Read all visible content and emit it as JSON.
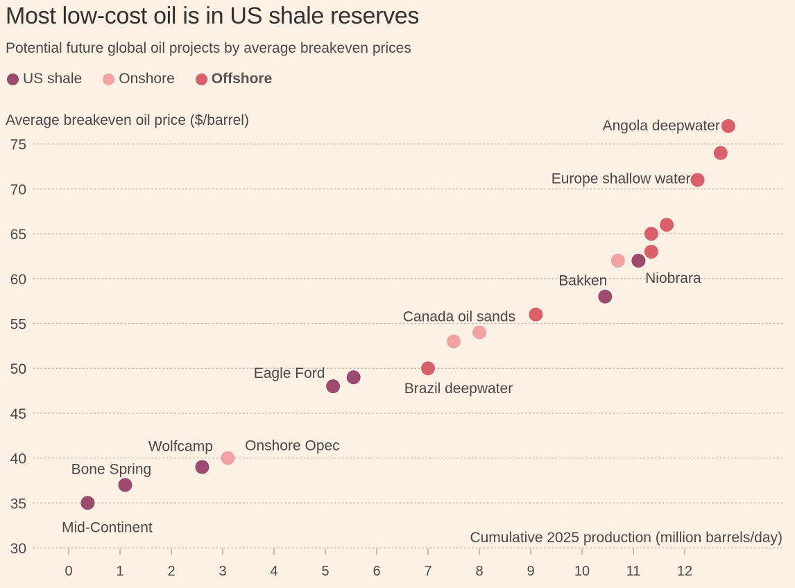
{
  "title": "Most low-cost oil is in US shale reserves",
  "subtitle": "Potential future global oil projects by average breakeven prices",
  "legend": [
    {
      "label": "US shale",
      "color": "#9c4a6e"
    },
    {
      "label": "Onshore",
      "color": "#f2a2a3"
    },
    {
      "label": "Offshore",
      "color": "#d9606a"
    }
  ],
  "chart_data": {
    "type": "scatter",
    "title": "Most low-cost oil is in US shale reserves",
    "subtitle": "Potential future global oil projects by average breakeven prices",
    "ylabel": "Average breakeven oil price ($/barrel)",
    "xlabel": "Cumulative 2025 production (million barrels/day)",
    "xlim": [
      -0.4,
      13.6
    ],
    "ylim": [
      30,
      78
    ],
    "xticks": [
      0,
      1,
      2,
      3,
      4,
      5,
      6,
      7,
      8,
      9,
      10,
      11,
      12
    ],
    "yticks": [
      30,
      35,
      40,
      45,
      50,
      55,
      60,
      65,
      70,
      75
    ],
    "grid": "horizontal dotted",
    "colors": {
      "US shale": "#9c4a6e",
      "Onshore": "#f2a2a3",
      "Offshore": "#d9606a"
    },
    "points": [
      {
        "x": 0.37,
        "y": 35,
        "category": "US shale",
        "label": "Mid-Continent"
      },
      {
        "x": 1.1,
        "y": 37,
        "category": "US shale",
        "label": "Bone Spring"
      },
      {
        "x": 2.6,
        "y": 39,
        "category": "US shale",
        "label": "Wolfcamp"
      },
      {
        "x": 3.1,
        "y": 40,
        "category": "Onshore",
        "label": "Onshore Opec"
      },
      {
        "x": 5.15,
        "y": 48,
        "category": "US shale",
        "label": "Eagle Ford"
      },
      {
        "x": 5.55,
        "y": 49,
        "category": "US shale",
        "label": ""
      },
      {
        "x": 7.0,
        "y": 50,
        "category": "Offshore",
        "label": "Brazil deepwater"
      },
      {
        "x": 7.5,
        "y": 53,
        "category": "Onshore",
        "label": ""
      },
      {
        "x": 8.0,
        "y": 54,
        "category": "Onshore",
        "label": "Canada oil sands"
      },
      {
        "x": 9.1,
        "y": 56,
        "category": "Offshore",
        "label": ""
      },
      {
        "x": 10.45,
        "y": 58,
        "category": "US shale",
        "label": "Bakken"
      },
      {
        "x": 10.7,
        "y": 62,
        "category": "Onshore",
        "label": ""
      },
      {
        "x": 11.1,
        "y": 62,
        "category": "US shale",
        "label": "Niobrara"
      },
      {
        "x": 11.35,
        "y": 63,
        "category": "Offshore",
        "label": ""
      },
      {
        "x": 11.35,
        "y": 65,
        "category": "Offshore",
        "label": ""
      },
      {
        "x": 11.65,
        "y": 66,
        "category": "Offshore",
        "label": ""
      },
      {
        "x": 12.25,
        "y": 71,
        "category": "Offshore",
        "label": "Europe shallow water"
      },
      {
        "x": 12.7,
        "y": 74,
        "category": "Offshore",
        "label": ""
      },
      {
        "x": 12.85,
        "y": 77,
        "category": "Offshore",
        "label": "Angola deepwater"
      }
    ]
  }
}
